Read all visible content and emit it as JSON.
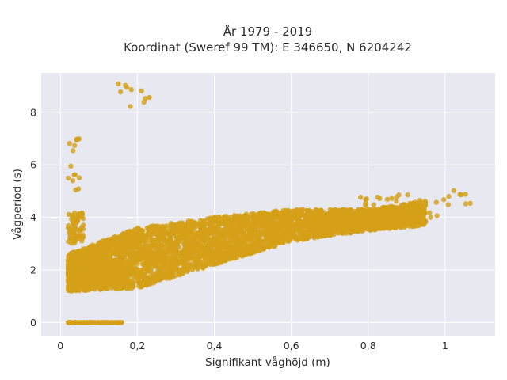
{
  "chart_data": {
    "type": "scatter",
    "title_line1": "År 1979 - 2019",
    "title_line2": "Koordinat (Sweref 99 TM): E 346650, N 6204242",
    "xlabel": "Signifikant våghöjd (m)",
    "ylabel": "Vågperiod (s)",
    "xlim": [
      -0.05,
      1.13
    ],
    "ylim": [
      -0.5,
      9.5
    ],
    "x_ticks": [
      0,
      0.2,
      0.4,
      0.6,
      0.8,
      1
    ],
    "x_tick_labels": [
      "0",
      "0,2",
      "0,4",
      "0,6",
      "0,8",
      "1"
    ],
    "y_ticks": [
      0,
      2,
      4,
      6,
      8
    ],
    "y_tick_labels": [
      "0",
      "2",
      "4",
      "6",
      "8"
    ],
    "grid": true,
    "colors": {
      "marker": "#d4a017",
      "plot_background": "#e8e8f1",
      "grid": "#ffffff"
    },
    "point_clusters": [
      {
        "x_range": [
          0.02,
          0.16
        ],
        "y": 0.0,
        "approx_count": 90
      },
      {
        "x_range": [
          0.02,
          0.06
        ],
        "y_range": [
          3.0,
          4.2
        ],
        "approx_count": 80
      },
      {
        "x_range": [
          0.02,
          0.05
        ],
        "y_range": [
          5.0,
          7.0
        ],
        "approx_count": 15
      },
      {
        "x_range": [
          0.15,
          0.28
        ],
        "y_range": [
          8.1,
          9.1
        ],
        "approx_count": 10
      }
    ],
    "band_upper": [
      {
        "x": 0.02,
        "y": 2.6
      },
      {
        "x": 0.2,
        "y": 3.6
      },
      {
        "x": 0.4,
        "y": 4.0
      },
      {
        "x": 0.6,
        "y": 4.3
      },
      {
        "x": 0.8,
        "y": 4.3
      },
      {
        "x": 1.07,
        "y": 4.9
      }
    ],
    "band_lower": [
      {
        "x": 0.02,
        "y": 1.2
      },
      {
        "x": 0.2,
        "y": 1.3
      },
      {
        "x": 0.4,
        "y": 2.2
      },
      {
        "x": 0.6,
        "y": 3.1
      },
      {
        "x": 0.8,
        "y": 3.5
      },
      {
        "x": 0.95,
        "y": 3.7
      }
    ]
  }
}
